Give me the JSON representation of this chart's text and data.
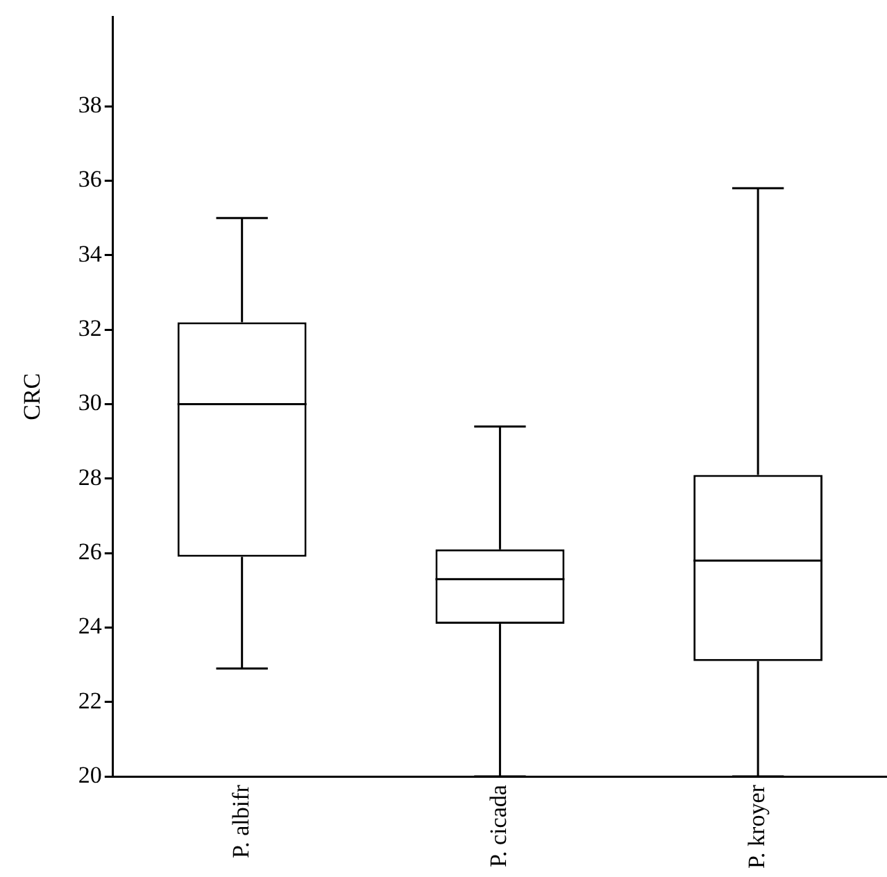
{
  "chart_data": {
    "type": "box",
    "ylabel": "CRC",
    "categories": [
      "P. albifr",
      "P. cicada",
      "P. kroyer"
    ],
    "boxes": [
      {
        "low": 22.9,
        "q1": 25.9,
        "median": 30.0,
        "q3": 32.2,
        "high": 35.0
      },
      {
        "low": 20,
        "q1": 24.1,
        "median": 25.3,
        "q3": 26.1,
        "high": 29.4
      },
      {
        "low": 20,
        "q1": 23.1,
        "median": 25.8,
        "q3": 28.1,
        "high": 35.8
      }
    ],
    "ylim": [
      20,
      40.4
    ],
    "yticks": [
      20,
      22,
      24,
      26,
      28,
      30,
      32,
      34,
      36,
      38
    ],
    "grid": false
  }
}
